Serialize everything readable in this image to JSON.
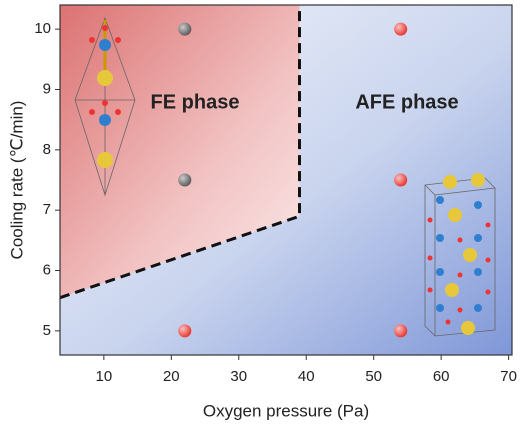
{
  "chart_data": {
    "type": "scatter",
    "xlabel": "Oxygen pressure (Pa)",
    "ylabel": "Cooling rate (℃/min)",
    "annotations": [
      "FE phase",
      "AFE phase"
    ],
    "xlim": [
      3.5,
      70.5
    ],
    "xticks": [
      10,
      20,
      30,
      40,
      50,
      60,
      70
    ],
    "ylim": [
      4.6,
      10.4
    ],
    "yticks": [
      5,
      6,
      7,
      8,
      9,
      10
    ],
    "series": [
      {
        "color": "#555555",
        "x": [
          22,
          22
        ],
        "values": [
          10,
          7.5
        ]
      },
      {
        "color": "#e8302a",
        "x": [
          22,
          54,
          54,
          54
        ],
        "values": [
          5,
          10,
          7.5,
          5
        ]
      }
    ],
    "boundary": {
      "x": [
        3.5,
        39,
        39
      ],
      "values": [
        5.55,
        6.9,
        10.4
      ]
    }
  }
}
